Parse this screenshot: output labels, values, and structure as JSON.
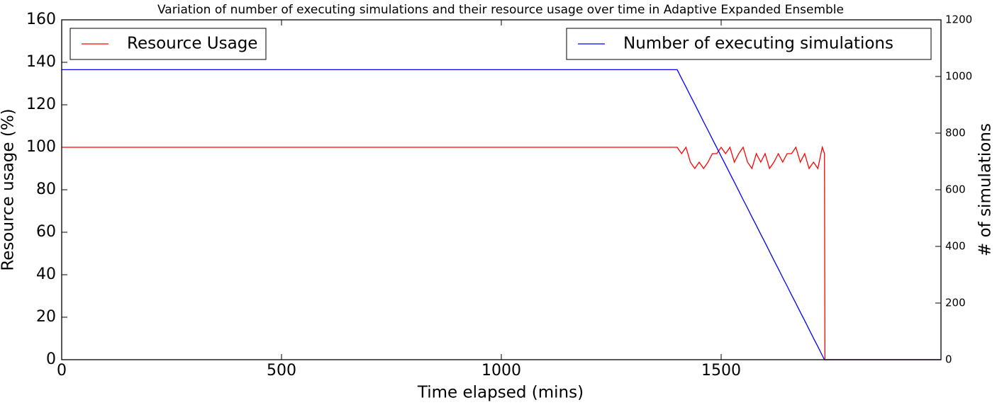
{
  "chart_data": {
    "type": "line",
    "title": "Variation of number of executing simulations and their resource usage over time in Adaptive Expanded Ensemble",
    "x_label": "Time elapsed (mins)",
    "y_label": "Resource usage (%)",
    "y2_label": "# of simulations",
    "xlim": [
      0,
      2000
    ],
    "xticks": [
      0,
      500,
      1000,
      1500
    ],
    "ylim": [
      0,
      160
    ],
    "yticks": [
      0,
      20,
      40,
      60,
      80,
      100,
      120,
      140,
      160
    ],
    "y2lim": [
      0,
      1200
    ],
    "y2ticks": [
      0,
      200,
      400,
      600,
      800,
      1000,
      1200
    ],
    "x": [
      0,
      1400,
      1410,
      1420,
      1430,
      1440,
      1450,
      1460,
      1470,
      1480,
      1490,
      1500,
      1510,
      1520,
      1530,
      1540,
      1550,
      1560,
      1570,
      1580,
      1590,
      1600,
      1610,
      1620,
      1630,
      1640,
      1650,
      1660,
      1670,
      1680,
      1690,
      1700,
      1710,
      1720,
      1730,
      1735,
      1736,
      2000
    ],
    "series": [
      {
        "name": "Resource Usage",
        "color": "#ff0000",
        "axis": "y",
        "legend": "upper left",
        "values": [
          100,
          100,
          97,
          100,
          93,
          90,
          93,
          90,
          93,
          97,
          97,
          100,
          97,
          100,
          93,
          97,
          100,
          93,
          90,
          97,
          93,
          97,
          90,
          93,
          97,
          93,
          97,
          97,
          100,
          93,
          97,
          90,
          93,
          90,
          100,
          97,
          0,
          0
        ]
      },
      {
        "name": "Number of executing simulations",
        "color": "#0000ff",
        "axis": "y2",
        "legend": "upper right",
        "values": [
          1024,
          1024,
          993,
          963,
          932,
          902,
          871,
          840,
          810,
          779,
          749,
          718,
          688,
          657,
          627,
          596,
          565,
          535,
          504,
          474,
          443,
          413,
          382,
          351,
          321,
          290,
          260,
          229,
          199,
          168,
          138,
          107,
          76,
          46,
          15,
          0,
          0,
          0
        ]
      }
    ]
  }
}
